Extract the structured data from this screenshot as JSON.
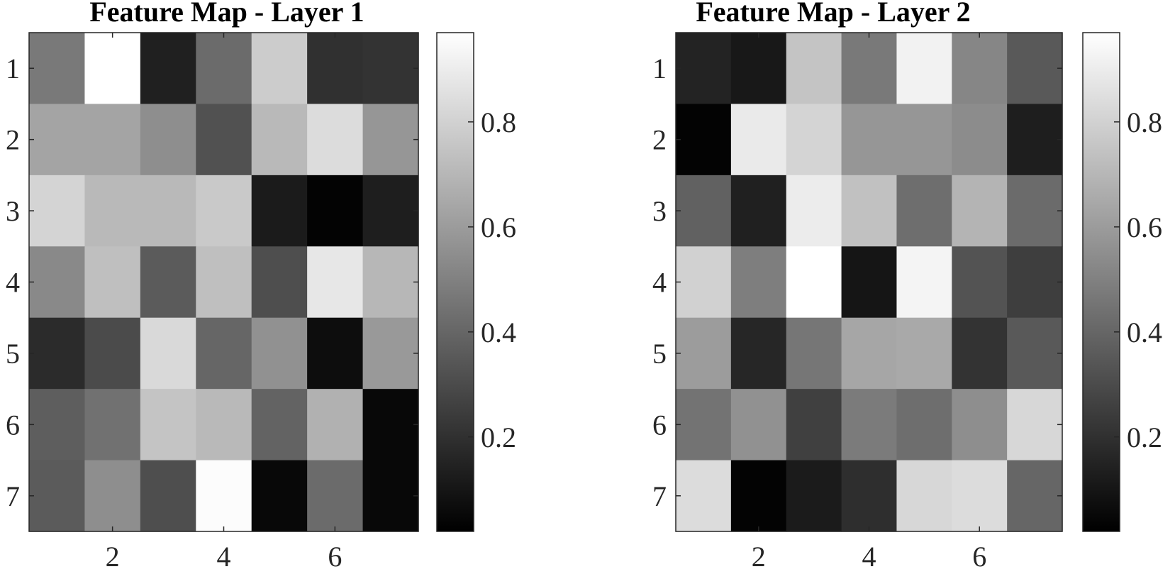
{
  "chart_data": [
    {
      "type": "heatmap",
      "title": "Feature Map - Layer 1",
      "xlabel": "",
      "ylabel": "",
      "colormap": "gray",
      "x_ticks": [
        "2",
        "4",
        "6"
      ],
      "y_ticks": [
        "1",
        "2",
        "3",
        "4",
        "5",
        "6",
        "7"
      ],
      "colorbar_ticks": [
        "0.2",
        "0.4",
        "0.6",
        "0.8"
      ],
      "clim": [
        0.02,
        0.97
      ],
      "values": [
        [
          0.47,
          0.97,
          0.14,
          0.42,
          0.78,
          0.2,
          0.21
        ],
        [
          0.63,
          0.63,
          0.55,
          0.32,
          0.71,
          0.84,
          0.58
        ],
        [
          0.81,
          0.71,
          0.71,
          0.77,
          0.12,
          0.03,
          0.13
        ],
        [
          0.53,
          0.73,
          0.36,
          0.73,
          0.31,
          0.88,
          0.7
        ],
        [
          0.18,
          0.3,
          0.83,
          0.4,
          0.56,
          0.07,
          0.59
        ],
        [
          0.37,
          0.44,
          0.75,
          0.71,
          0.39,
          0.68,
          0.05
        ],
        [
          0.36,
          0.55,
          0.31,
          0.96,
          0.05,
          0.42,
          0.05
        ]
      ]
    },
    {
      "type": "heatmap",
      "title": "Feature Map - Layer 2",
      "xlabel": "",
      "ylabel": "",
      "colormap": "gray",
      "x_ticks": [
        "2",
        "4",
        "6"
      ],
      "y_ticks": [
        "1",
        "2",
        "3",
        "4",
        "5",
        "6",
        "7"
      ],
      "colorbar_ticks": [
        "0.2",
        "0.4",
        "0.6",
        "0.8"
      ],
      "clim": [
        0.02,
        0.97
      ],
      "values": [
        [
          0.15,
          0.11,
          0.75,
          0.47,
          0.92,
          0.52,
          0.35
        ],
        [
          0.03,
          0.89,
          0.81,
          0.58,
          0.58,
          0.54,
          0.13
        ],
        [
          0.38,
          0.14,
          0.9,
          0.74,
          0.43,
          0.69,
          0.42
        ],
        [
          0.8,
          0.49,
          0.97,
          0.1,
          0.93,
          0.33,
          0.25
        ],
        [
          0.6,
          0.16,
          0.46,
          0.64,
          0.65,
          0.21,
          0.35
        ],
        [
          0.45,
          0.56,
          0.26,
          0.48,
          0.43,
          0.55,
          0.82
        ],
        [
          0.84,
          0.03,
          0.12,
          0.19,
          0.82,
          0.84,
          0.4
        ]
      ]
    }
  ]
}
